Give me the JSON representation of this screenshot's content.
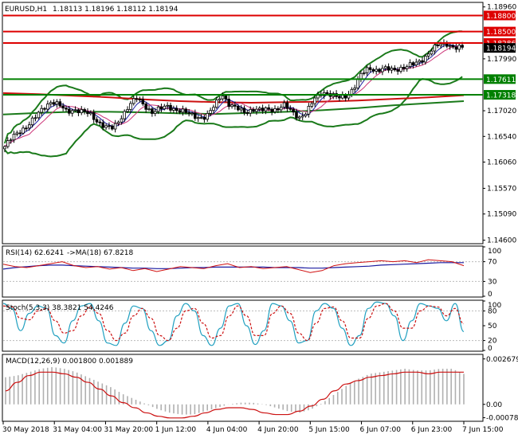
{
  "header": {
    "symbol": "EURUSD,H1",
    "ohlc": "1.18113 1.18196 1.18112 1.18194"
  },
  "colors": {
    "background": "#ffffff",
    "frame": "#000000",
    "bull_candle": "#ffffff",
    "bear_candle": "#000000",
    "bollinger": "#1a7a1a",
    "ma_red": "#cc1111",
    "ma_green": "#1a7a1a",
    "ma_blue": "#1a1aa0",
    "ma_pink": "#cc3377",
    "level_red": "#dd0000",
    "level_green": "#008000",
    "rsi_line": "#d01010",
    "rsi_ma": "#1a1aa0",
    "stoch_main": "#20a0c0",
    "stoch_signal": "#cc1111",
    "macd_hist": "#b0b0b0",
    "macd_signal": "#cc1111"
  },
  "chart_data": [
    {
      "type": "candlestick",
      "panel": "price",
      "title": "EURUSD,H1",
      "ylim": [
        1.1455,
        1.1903
      ],
      "y_ticks": [
        "1.18960",
        "1.18800",
        "1.18500",
        "1.18286",
        "1.18194",
        "1.17990",
        "1.17611",
        "1.17318",
        "1.17020",
        "1.16540",
        "1.16060",
        "1.15570",
        "1.15090",
        "1.14600"
      ],
      "current_price": "1.18194",
      "levels": [
        {
          "value": 1.188,
          "label": "1.18800",
          "color": "red"
        },
        {
          "value": 1.185,
          "label": "1.18500",
          "color": "red"
        },
        {
          "value": 1.18286,
          "label": "1.18286",
          "color": "red"
        },
        {
          "value": 1.17611,
          "label": "1.17611",
          "color": "green"
        },
        {
          "value": 1.17318,
          "label": "1.17318",
          "color": "green"
        }
      ],
      "x_labels": [
        "30 May 2018",
        "31 May 04:00",
        "31 May 20:00",
        "1 Jun 12:00",
        "4 Jun 04:00",
        "4 Jun 20:00",
        "5 Jun 15:00",
        "6 Jun 07:00",
        "6 Jun 23:00",
        "7 Jun 15:00"
      ],
      "close_path": [
        1.1635,
        1.1652,
        1.1665,
        1.1675,
        1.169,
        1.1708,
        1.172,
        1.1712,
        1.17,
        1.1705,
        1.17,
        1.1695,
        1.1682,
        1.1672,
        1.1668,
        1.169,
        1.1712,
        1.1725,
        1.1712,
        1.17,
        1.1705,
        1.171,
        1.1705,
        1.17,
        1.1695,
        1.169,
        1.169,
        1.171,
        1.1735,
        1.1712,
        1.1705,
        1.17,
        1.1705,
        1.1702,
        1.1705,
        1.1705,
        1.1712,
        1.17,
        1.169,
        1.17,
        1.1725,
        1.1738,
        1.1732,
        1.1725,
        1.173,
        1.1745,
        1.177,
        1.1782,
        1.1778,
        1.178,
        1.1778,
        1.1782,
        1.1785,
        1.179,
        1.18,
        1.1815,
        1.1825,
        1.1828,
        1.182,
        1.1819
      ],
      "moving_averages": [
        {
          "color": "red",
          "values": [
            1.1735,
            1.1733,
            1.173,
            1.1727,
            1.1723,
            1.172,
            1.1718,
            1.1717,
            1.1718,
            1.1719,
            1.1721,
            1.1724,
            1.1727,
            1.1731
          ]
        },
        {
          "color": "green",
          "values": [
            1.1695,
            1.1698,
            1.17,
            1.17,
            1.1699,
            1.1697,
            1.1696,
            1.1698,
            1.17,
            1.1703,
            1.1707,
            1.1712,
            1.1716,
            1.172
          ]
        }
      ]
    },
    {
      "type": "line",
      "panel": "rsi",
      "title": "RSI(14) 62.6241",
      "signal_title": "->MA(18) 67.8218",
      "ylim": [
        0,
        100
      ],
      "y_ticks": [
        "100",
        "70",
        "30",
        "0"
      ],
      "series": [
        {
          "name": "RSI(14)",
          "values": [
            65,
            60,
            58,
            62,
            66,
            70,
            62,
            58,
            60,
            55,
            58,
            52,
            56,
            50,
            55,
            60,
            58,
            56,
            62,
            66,
            58,
            60,
            56,
            58,
            60,
            54,
            48,
            52,
            62,
            66,
            68,
            70,
            72,
            70,
            72,
            68,
            74,
            72,
            70,
            62
          ]
        },
        {
          "name": "MA(18)",
          "values": [
            55,
            58,
            60,
            62,
            63,
            63,
            62,
            61,
            60,
            59,
            58,
            57,
            57,
            56,
            56,
            57,
            58,
            58,
            59,
            59,
            59,
            59,
            59,
            58,
            58,
            58,
            57,
            57,
            58,
            59,
            60,
            61,
            63,
            64,
            65,
            66,
            67,
            68,
            68,
            68
          ]
        }
      ]
    },
    {
      "type": "line",
      "panel": "stochastic",
      "title": "Stoch(5,3,3) 38.3821 54.4246",
      "ylim": [
        0,
        100
      ],
      "y_ticks": [
        "100",
        "80",
        "50",
        "20",
        "0"
      ],
      "series": [
        {
          "name": "%K",
          "values": [
            95,
            85,
            40,
            75,
            90,
            85,
            30,
            15,
            60,
            90,
            95,
            60,
            15,
            10,
            55,
            90,
            85,
            40,
            10,
            20,
            70,
            95,
            80,
            30,
            10,
            45,
            90,
            95,
            50,
            12,
            40,
            95,
            90,
            60,
            15,
            20,
            80,
            95,
            85,
            45,
            10,
            30,
            85,
            98,
            95,
            70,
            20,
            60,
            95,
            90,
            85,
            60,
            95,
            38
          ]
        },
        {
          "name": "%D",
          "values": [
            90,
            88,
            65,
            62,
            80,
            85,
            60,
            35,
            40,
            70,
            88,
            75,
            40,
            20,
            35,
            70,
            85,
            65,
            30,
            20,
            45,
            80,
            85,
            55,
            25,
            30,
            70,
            90,
            70,
            30,
            30,
            75,
            90,
            75,
            35,
            20,
            55,
            85,
            88,
            60,
            25,
            25,
            65,
            90,
            95,
            80,
            45,
            45,
            80,
            90,
            88,
            70,
            85,
            54
          ]
        }
      ]
    },
    {
      "type": "bar",
      "panel": "macd",
      "title": "MACD(12,26,9) 0.001800 0.001889",
      "ylim": [
        -0.00095,
        0.0029
      ],
      "y_ticks": [
        "0.002679",
        "0.00",
        "-0.000788"
      ],
      "series": [
        {
          "name": "histogram",
          "values": [
            0.0016,
            0.0017,
            0.0019,
            0.0021,
            0.0022,
            0.0021,
            0.0019,
            0.0016,
            0.0013,
            0.001,
            0.0006,
            0.0003,
            0.0,
            -0.0003,
            -0.0005,
            -0.0006,
            -0.0006,
            -0.0004,
            -0.0002,
            0.0,
            0.0001,
            0.0001,
            0.0,
            -0.0002,
            -0.0004,
            -0.0005,
            -0.0003,
            0.0001,
            0.0006,
            0.0011,
            0.0015,
            0.0018,
            0.0019,
            0.002,
            0.0021,
            0.002,
            0.002,
            0.0021,
            0.0021,
            0.0018
          ]
        },
        {
          "name": "signal",
          "values": [
            0.0008,
            0.0013,
            0.0017,
            0.0019,
            0.0019,
            0.0018,
            0.0016,
            0.0013,
            0.0009,
            0.0005,
            0.0001,
            -0.0002,
            -0.0005,
            -0.0007,
            -0.0008,
            -0.0008,
            -0.0007,
            -0.0005,
            -0.0003,
            -0.0002,
            -0.0002,
            -0.0003,
            -0.0005,
            -0.0006,
            -0.0006,
            -0.0004,
            -0.0001,
            0.0003,
            0.0008,
            0.0012,
            0.0014,
            0.0016,
            0.0017,
            0.0018,
            0.0019,
            0.0019,
            0.0018,
            0.0019,
            0.0019,
            0.0019
          ]
        }
      ]
    }
  ]
}
